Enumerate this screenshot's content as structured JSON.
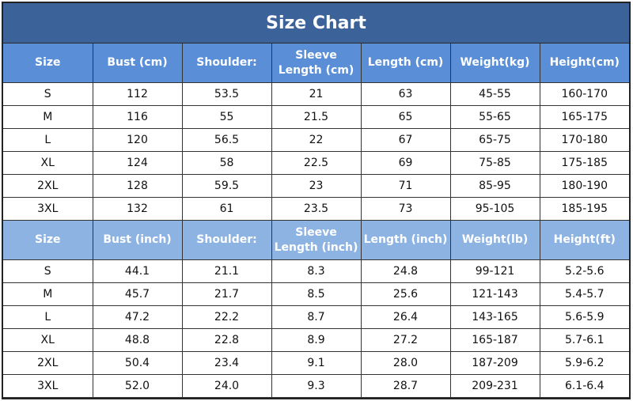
{
  "title": "Size Chart",
  "colors": {
    "title_bg": "#3c6399",
    "header_cm_bg": "#5a8fd8",
    "header_inch_bg": "#8db3e3"
  },
  "cm": {
    "headers": [
      "Size",
      "Bust (cm)",
      "Shoulder:",
      "Sleeve Length (cm)",
      "Length (cm)",
      "Weight(kg)",
      "Height(cm)"
    ],
    "rows": [
      [
        "S",
        "112",
        "53.5",
        "21",
        "63",
        "45-55",
        "160-170"
      ],
      [
        "M",
        "116",
        "55",
        "21.5",
        "65",
        "55-65",
        "165-175"
      ],
      [
        "L",
        "120",
        "56.5",
        "22",
        "67",
        "65-75",
        "170-180"
      ],
      [
        "XL",
        "124",
        "58",
        "22.5",
        "69",
        "75-85",
        "175-185"
      ],
      [
        "2XL",
        "128",
        "59.5",
        "23",
        "71",
        "85-95",
        "180-190"
      ],
      [
        "3XL",
        "132",
        "61",
        "23.5",
        "73",
        "95-105",
        "185-195"
      ]
    ]
  },
  "inch": {
    "headers": [
      "Size",
      "Bust (inch)",
      "Shoulder:",
      "Sleeve Length (inch)",
      "Length (inch)",
      "Weight(lb)",
      "Height(ft)"
    ],
    "rows": [
      [
        "S",
        "44.1",
        "21.1",
        "8.3",
        "24.8",
        "99-121",
        "5.2-5.6"
      ],
      [
        "M",
        "45.7",
        "21.7",
        "8.5",
        "25.6",
        "121-143",
        "5.4-5.7"
      ],
      [
        "L",
        "47.2",
        "22.2",
        "8.7",
        "26.4",
        "143-165",
        "5.6-5.9"
      ],
      [
        "XL",
        "48.8",
        "22.8",
        "8.9",
        "27.2",
        "165-187",
        "5.7-6.1"
      ],
      [
        "2XL",
        "50.4",
        "23.4",
        "9.1",
        "28.0",
        "187-209",
        "5.9-6.2"
      ],
      [
        "3XL",
        "52.0",
        "24.0",
        "9.3",
        "28.7",
        "209-231",
        "6.1-6.4"
      ]
    ]
  }
}
